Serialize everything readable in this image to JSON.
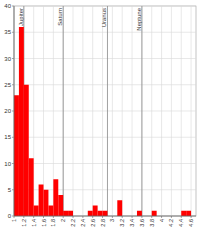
{
  "chart_data": {
    "type": "histogram",
    "bins": [
      1,
      1.1,
      1.2,
      1.3,
      1.4,
      1.5,
      1.6,
      1.7,
      1.8,
      1.9,
      2,
      2.1,
      2.2,
      2.3,
      2.4,
      2.5,
      2.6,
      2.7,
      2.8,
      2.9,
      3,
      3.1,
      3.2,
      3.3,
      3.4,
      3.5,
      3.6,
      3.7,
      3.8,
      3.9,
      4,
      4.1,
      4.2,
      4.3,
      4.4,
      4.5,
      4.6,
      4.7
    ],
    "values": [
      23,
      36,
      25,
      11,
      2,
      6,
      5,
      2,
      7,
      4,
      1,
      1,
      0,
      0,
      0,
      1,
      2,
      1,
      1,
      0,
      0,
      3,
      0,
      0,
      0,
      1,
      0,
      0,
      1,
      0,
      0,
      0,
      0,
      0,
      1,
      1,
      0
    ],
    "color": "#ff0000",
    "xlim": [
      1,
      4.7
    ],
    "xticks": [
      1,
      1.2,
      1.4,
      1.6,
      1.8,
      2,
      2.2,
      2.4,
      2.6,
      2.8,
      3,
      3.2,
      3.4,
      3.6,
      3.8,
      4,
      4.2,
      4.4,
      4.6
    ],
    "ylim": [
      0,
      40
    ],
    "yticks": [
      0,
      5,
      10,
      15,
      20,
      25,
      30,
      35,
      40
    ],
    "grid": true,
    "annotations": [
      {
        "label": "Jupiter",
        "x": 1.2
      },
      {
        "label": "Saturn",
        "x": 2
      },
      {
        "label": "Uranus",
        "x": 2.9
      },
      {
        "label": "Neptune",
        "x": 3.6
      }
    ]
  }
}
